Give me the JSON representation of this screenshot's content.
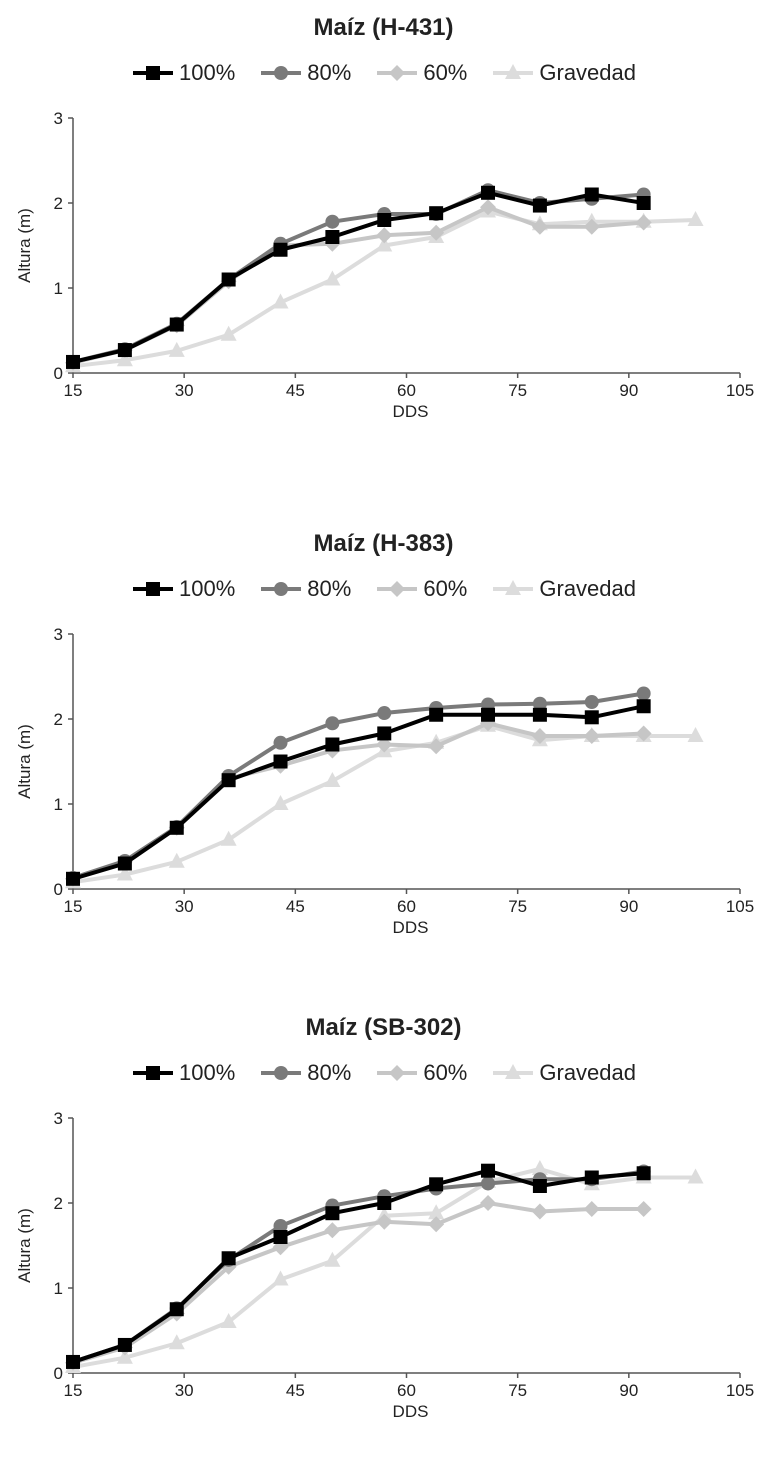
{
  "chart_data": [
    {
      "type": "line",
      "title": "Maíz (H-431)",
      "xlabel": "DDS",
      "ylabel": "Altura (m)",
      "xlim": [
        15,
        105
      ],
      "ylim": [
        0,
        3
      ],
      "xticks": [
        "15",
        "30",
        "45",
        "60",
        "75",
        "90",
        "105"
      ],
      "yticks": [
        "0",
        "1",
        "2",
        "3"
      ],
      "series": [
        {
          "name": "100%",
          "color": "#000000",
          "marker": "square",
          "x": [
            15,
            22,
            29,
            36,
            43,
            50,
            57,
            64,
            71,
            78,
            85,
            92
          ],
          "y": [
            0.13,
            0.27,
            0.57,
            1.1,
            1.45,
            1.6,
            1.8,
            1.88,
            2.12,
            1.97,
            2.1,
            2.0
          ]
        },
        {
          "name": "80%",
          "color": "#7a7a7a",
          "marker": "circle",
          "x": [
            15,
            22,
            29,
            36,
            43,
            50,
            57,
            64,
            71,
            78,
            85,
            92
          ],
          "y": [
            0.13,
            0.28,
            0.58,
            1.1,
            1.52,
            1.78,
            1.87,
            1.87,
            2.15,
            2.0,
            2.05,
            2.1
          ]
        },
        {
          "name": "60%",
          "color": "#c6c6c6",
          "marker": "diamond",
          "x": [
            15,
            22,
            29,
            36,
            43,
            50,
            57,
            64,
            71,
            78,
            85,
            92
          ],
          "y": [
            0.12,
            0.27,
            0.56,
            1.08,
            1.5,
            1.52,
            1.62,
            1.65,
            1.95,
            1.72,
            1.72,
            1.77
          ]
        },
        {
          "name": "Gravedad",
          "color": "#dcdcdc",
          "marker": "triangle",
          "x": [
            15,
            22,
            29,
            36,
            43,
            50,
            57,
            64,
            71,
            78,
            85,
            92,
            99
          ],
          "y": [
            0.08,
            0.15,
            0.26,
            0.45,
            0.83,
            1.1,
            1.5,
            1.6,
            1.9,
            1.75,
            1.78,
            1.78,
            1.8
          ]
        }
      ]
    },
    {
      "type": "line",
      "title": "Maíz (H-383)",
      "xlabel": "DDS",
      "ylabel": "Altura (m)",
      "xlim": [
        15,
        105
      ],
      "ylim": [
        0,
        3
      ],
      "xticks": [
        "15",
        "30",
        "45",
        "60",
        "75",
        "90",
        "105"
      ],
      "yticks": [
        "0",
        "1",
        "2",
        "3"
      ],
      "series": [
        {
          "name": "100%",
          "color": "#000000",
          "marker": "square",
          "x": [
            15,
            22,
            29,
            36,
            43,
            50,
            57,
            64,
            71,
            78,
            85,
            92
          ],
          "y": [
            0.12,
            0.3,
            0.72,
            1.28,
            1.5,
            1.7,
            1.83,
            2.05,
            2.05,
            2.05,
            2.02,
            2.15
          ]
        },
        {
          "name": "80%",
          "color": "#7a7a7a",
          "marker": "circle",
          "x": [
            15,
            22,
            29,
            36,
            43,
            50,
            57,
            64,
            71,
            78,
            85,
            92
          ],
          "y": [
            0.13,
            0.33,
            0.73,
            1.33,
            1.72,
            1.95,
            2.07,
            2.13,
            2.17,
            2.18,
            2.2,
            2.3
          ]
        },
        {
          "name": "60%",
          "color": "#c6c6c6",
          "marker": "diamond",
          "x": [
            15,
            22,
            29,
            36,
            43,
            50,
            57,
            64,
            71,
            78,
            85,
            92
          ],
          "y": [
            0.12,
            0.32,
            0.72,
            1.3,
            1.45,
            1.63,
            1.7,
            1.68,
            1.95,
            1.8,
            1.8,
            1.83
          ]
        },
        {
          "name": "Gravedad",
          "color": "#dcdcdc",
          "marker": "triangle",
          "x": [
            15,
            22,
            29,
            36,
            43,
            50,
            57,
            64,
            71,
            78,
            85,
            92,
            99
          ],
          "y": [
            0.08,
            0.17,
            0.32,
            0.58,
            1.0,
            1.27,
            1.62,
            1.72,
            1.92,
            1.75,
            1.8,
            1.8,
            1.8
          ]
        }
      ]
    },
    {
      "type": "line",
      "title": "Maíz (SB-302)",
      "xlabel": "DDS",
      "ylabel": "Altura (m)",
      "xlim": [
        15,
        105
      ],
      "ylim": [
        0,
        3
      ],
      "xticks": [
        "15",
        "30",
        "45",
        "60",
        "75",
        "90",
        "105"
      ],
      "yticks": [
        "0",
        "1",
        "2",
        "3"
      ],
      "series": [
        {
          "name": "100%",
          "color": "#000000",
          "marker": "square",
          "x": [
            15,
            22,
            29,
            36,
            43,
            50,
            57,
            64,
            71,
            78,
            85,
            92
          ],
          "y": [
            0.13,
            0.33,
            0.75,
            1.35,
            1.6,
            1.88,
            2.0,
            2.22,
            2.38,
            2.2,
            2.3,
            2.35
          ]
        },
        {
          "name": "80%",
          "color": "#7a7a7a",
          "marker": "circle",
          "x": [
            15,
            22,
            29,
            36,
            43,
            50,
            57,
            64,
            71,
            78,
            85,
            92
          ],
          "y": [
            0.13,
            0.33,
            0.76,
            1.33,
            1.73,
            1.97,
            2.08,
            2.17,
            2.23,
            2.28,
            2.28,
            2.37
          ]
        },
        {
          "name": "60%",
          "color": "#c6c6c6",
          "marker": "diamond",
          "x": [
            15,
            22,
            29,
            36,
            43,
            50,
            57,
            64,
            71,
            78,
            85,
            92
          ],
          "y": [
            0.12,
            0.3,
            0.7,
            1.25,
            1.48,
            1.68,
            1.78,
            1.75,
            2.0,
            1.9,
            1.93,
            1.93
          ]
        },
        {
          "name": "Gravedad",
          "color": "#dcdcdc",
          "marker": "triangle",
          "x": [
            15,
            22,
            29,
            36,
            43,
            50,
            57,
            64,
            71,
            78,
            85,
            92,
            99
          ],
          "y": [
            0.07,
            0.18,
            0.35,
            0.6,
            1.1,
            1.32,
            1.85,
            1.88,
            2.25,
            2.4,
            2.22,
            2.3,
            2.3
          ]
        }
      ]
    }
  ]
}
